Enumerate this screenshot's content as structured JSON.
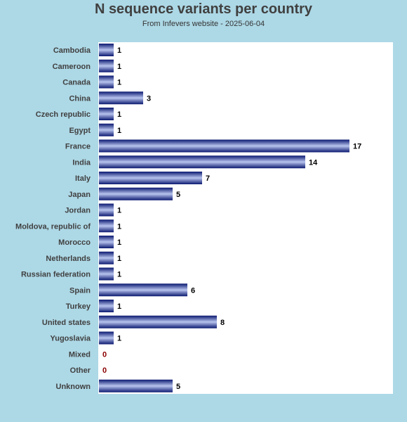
{
  "chart_data": {
    "type": "bar",
    "orientation": "horizontal",
    "title": "N sequence variants per country",
    "subtitle": "From Infevers website - 2025-06-04",
    "categories": [
      "Cambodia",
      "Cameroon",
      "Canada",
      "China",
      "Czech republic",
      "Egypt",
      "France",
      "India",
      "Italy",
      "Japan",
      "Jordan",
      "Moldova, republic of",
      "Morocco",
      "Netherlands",
      "Russian federation",
      "Spain",
      "Turkey",
      "United states",
      "Yugoslavia",
      "Mixed",
      "Other",
      "Unknown"
    ],
    "values": [
      1,
      1,
      1,
      3,
      1,
      1,
      17,
      14,
      7,
      5,
      1,
      1,
      1,
      1,
      1,
      6,
      1,
      8,
      1,
      0,
      0,
      5
    ],
    "xlim": [
      0,
      20
    ],
    "grid": false,
    "colors": {
      "bar_dark": "#0a1870",
      "bar_light": "#b8c4ee",
      "zero_label": "#8b0000",
      "background": "#add8e6",
      "plot_bg": "#ffffff"
    }
  }
}
